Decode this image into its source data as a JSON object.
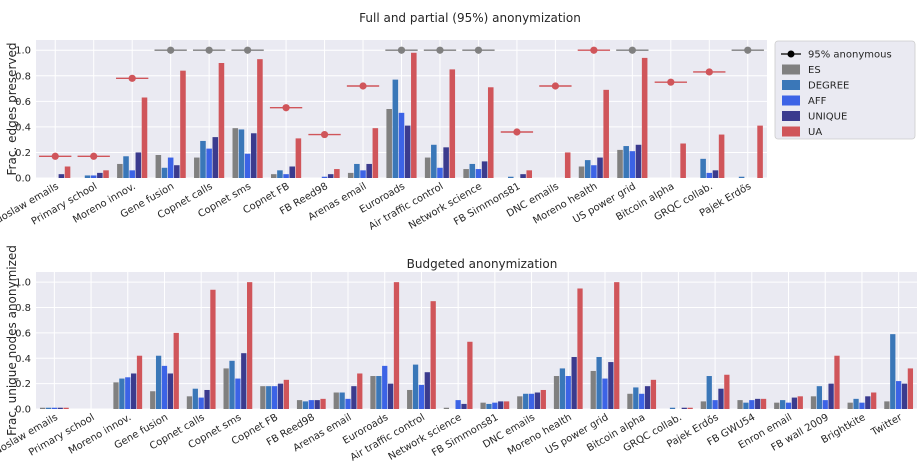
{
  "colors": {
    "ES": "#808080",
    "DEGREE": "#3a77b8",
    "AFF": "#3c63e6",
    "UNIQUE": "#3b3b8e",
    "UA": "#d0555a",
    "marker_red": "#d0555a",
    "marker_grey": "#808080",
    "plot_bg": "#eaeaf2",
    "grid": "#ffffff"
  },
  "legend": {
    "placement": "right",
    "entries": [
      {
        "key": "marker",
        "label": "95% anonymous"
      },
      {
        "key": "ES",
        "label": "ES"
      },
      {
        "key": "DEGREE",
        "label": "DEGREE"
      },
      {
        "key": "AFF",
        "label": "AFF"
      },
      {
        "key": "UNIQUE",
        "label": "UNIQUE"
      },
      {
        "key": "UA",
        "label": "UA"
      }
    ]
  },
  "chart_data": [
    {
      "type": "bar",
      "title": "Full and partial (95%) anonymization",
      "xlabel": "",
      "ylabel": "Frac. edges preserved",
      "ylim": [
        0,
        1.08
      ],
      "yticks": [
        "0.0",
        "0.2",
        "0.4",
        "0.6",
        "0.8",
        "1.0"
      ],
      "grid": true,
      "categories": [
        "Radoslaw emails",
        "Primary school",
        "Moreno innov.",
        "Gene fusion",
        "Copnet calls",
        "Copnet sms",
        "Copnet FB",
        "FB Reed98",
        "Arenas email",
        "Euroroads",
        "Air traffic control",
        "Network science",
        "FB Simmons81",
        "DNC emails",
        "Moreno health",
        "US power grid",
        "Bitcoin alpha",
        "GRQC collab.",
        "Pajek Erdős"
      ],
      "series": [
        {
          "name": "ES",
          "values": [
            0.0,
            0.0,
            0.11,
            0.18,
            0.16,
            0.39,
            0.03,
            0.0,
            0.04,
            0.54,
            0.16,
            0.07,
            0.0,
            0.0,
            0.09,
            0.22,
            0.0,
            0.0,
            0.0
          ]
        },
        {
          "name": "DEGREE",
          "values": [
            0.0,
            0.02,
            0.17,
            0.08,
            0.29,
            0.38,
            0.06,
            0.0,
            0.11,
            0.77,
            0.26,
            0.11,
            0.01,
            0.0,
            0.14,
            0.25,
            0.0,
            0.15,
            0.01
          ]
        },
        {
          "name": "AFF",
          "values": [
            0.0,
            0.02,
            0.06,
            0.16,
            0.23,
            0.19,
            0.03,
            0.01,
            0.06,
            0.51,
            0.08,
            0.07,
            0.0,
            0.0,
            0.1,
            0.21,
            0.0,
            0.04,
            0.0
          ]
        },
        {
          "name": "UNIQUE",
          "values": [
            0.03,
            0.04,
            0.2,
            0.1,
            0.32,
            0.35,
            0.09,
            0.03,
            0.11,
            0.41,
            0.24,
            0.13,
            0.03,
            0.0,
            0.16,
            0.26,
            0.0,
            0.06,
            0.0
          ]
        },
        {
          "name": "UA",
          "values": [
            0.09,
            0.06,
            0.63,
            0.84,
            0.9,
            0.93,
            0.31,
            0.07,
            0.39,
            0.98,
            0.85,
            0.71,
            0.06,
            0.2,
            0.69,
            0.94,
            0.27,
            0.34,
            0.41
          ]
        }
      ],
      "markers_95pct": [
        {
          "category": "Radoslaw emails",
          "value": 0.17,
          "color": "red"
        },
        {
          "category": "Primary school",
          "value": 0.17,
          "color": "red"
        },
        {
          "category": "Moreno innov.",
          "value": 0.78,
          "color": "red"
        },
        {
          "category": "Gene fusion",
          "value": 1.0,
          "color": "grey"
        },
        {
          "category": "Copnet calls",
          "value": 1.0,
          "color": "grey"
        },
        {
          "category": "Copnet sms",
          "value": 1.0,
          "color": "grey"
        },
        {
          "category": "Copnet FB",
          "value": 0.55,
          "color": "red"
        },
        {
          "category": "FB Reed98",
          "value": 0.34,
          "color": "red"
        },
        {
          "category": "Arenas email",
          "value": 0.72,
          "color": "red"
        },
        {
          "category": "Euroroads",
          "value": 1.0,
          "color": "grey"
        },
        {
          "category": "Air traffic control",
          "value": 1.0,
          "color": "grey"
        },
        {
          "category": "Network science",
          "value": 1.0,
          "color": "grey"
        },
        {
          "category": "FB Simmons81",
          "value": 0.36,
          "color": "red"
        },
        {
          "category": "DNC emails",
          "value": 0.72,
          "color": "red"
        },
        {
          "category": "Moreno health",
          "value": 1.0,
          "color": "red"
        },
        {
          "category": "US power grid",
          "value": 1.0,
          "color": "grey"
        },
        {
          "category": "Bitcoin alpha",
          "value": 0.75,
          "color": "red"
        },
        {
          "category": "GRQC collab.",
          "value": 0.83,
          "color": "red"
        },
        {
          "category": "Pajek Erdős",
          "value": 1.0,
          "color": "grey"
        }
      ]
    },
    {
      "type": "bar",
      "title": "Budgeted anonymization",
      "xlabel": "",
      "ylabel": "Frac. unique nodes anonymized",
      "ylim": [
        0,
        1.08
      ],
      "yticks": [
        "0.0",
        "0.2",
        "0.4",
        "0.6",
        "0.8",
        "1.0"
      ],
      "grid": true,
      "categories": [
        "Radoslaw emails",
        "Primary school",
        "Moreno innov.",
        "Gene fusion",
        "Copnet calls",
        "Copnet sms",
        "Copnet FB",
        "FB Reed98",
        "Arenas email",
        "Euroroads",
        "Air traffic control",
        "Network science",
        "FB Simmons81",
        "DNC emails",
        "Moreno health",
        "US power grid",
        "Bitcoin alpha",
        "GRQC collab.",
        "Pajek Erdős",
        "FB GWU54",
        "Enron email",
        "FB wall 2009",
        "Brightkite",
        "Twitter"
      ],
      "series": [
        {
          "name": "ES",
          "values": [
            0.01,
            0.0,
            0.21,
            0.14,
            0.1,
            0.32,
            0.18,
            0.07,
            0.13,
            0.26,
            0.15,
            0.01,
            0.05,
            0.1,
            0.26,
            0.3,
            0.12,
            0.0,
            0.06,
            0.07,
            0.05,
            0.1,
            0.05,
            0.06
          ]
        },
        {
          "name": "DEGREE",
          "values": [
            0.01,
            0.0,
            0.24,
            0.42,
            0.16,
            0.38,
            0.18,
            0.06,
            0.13,
            0.26,
            0.35,
            0.0,
            0.04,
            0.12,
            0.32,
            0.41,
            0.17,
            0.01,
            0.26,
            0.05,
            0.07,
            0.18,
            0.08,
            0.59
          ]
        },
        {
          "name": "AFF",
          "values": [
            0.01,
            0.0,
            0.25,
            0.34,
            0.09,
            0.24,
            0.18,
            0.07,
            0.08,
            0.34,
            0.19,
            0.07,
            0.05,
            0.12,
            0.26,
            0.24,
            0.12,
            0.0,
            0.07,
            0.07,
            0.05,
            0.07,
            0.05,
            0.22
          ]
        },
        {
          "name": "UNIQUE",
          "values": [
            0.01,
            0.0,
            0.28,
            0.28,
            0.15,
            0.44,
            0.2,
            0.07,
            0.18,
            0.2,
            0.29,
            0.04,
            0.06,
            0.13,
            0.41,
            0.37,
            0.18,
            0.01,
            0.16,
            0.08,
            0.09,
            0.2,
            0.1,
            0.2
          ]
        },
        {
          "name": "UA",
          "values": [
            0.01,
            0.0,
            0.42,
            0.6,
            0.94,
            1.0,
            0.23,
            0.08,
            0.28,
            1.0,
            0.85,
            0.53,
            0.06,
            0.15,
            0.95,
            1.0,
            0.23,
            0.01,
            0.27,
            0.08,
            0.1,
            0.42,
            0.13,
            0.32
          ]
        }
      ]
    }
  ]
}
